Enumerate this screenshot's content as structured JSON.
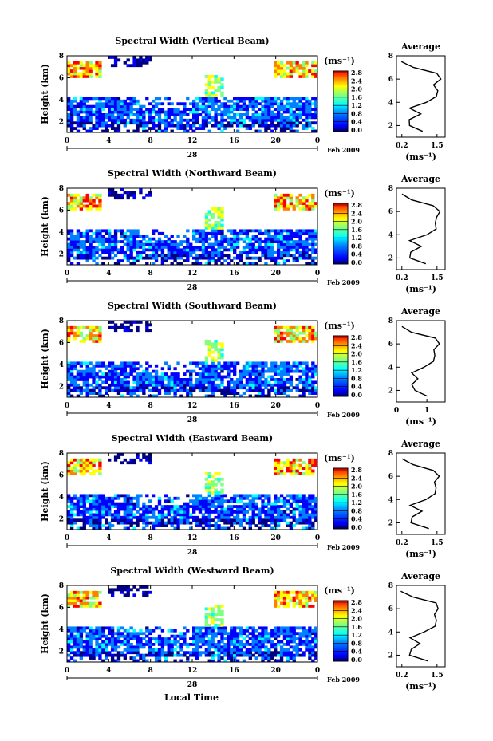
{
  "page": {
    "x_axis_label": "Local Time",
    "date_label": "Feb 2009",
    "day_label": "28",
    "ylabel": "Height (km)",
    "cb_unit": "(ms⁻¹)",
    "avg_title": "Average",
    "avg_xlabel": "(ms⁻¹)"
  },
  "chart_data": [
    {
      "type": "heatmap",
      "title": "Spectral Width (Vertical Beam)",
      "xlabel": "",
      "ylabel": "Height (km)",
      "x_ticks": [
        "0",
        "4",
        "8",
        "12",
        "16",
        "20",
        "0"
      ],
      "y_ticks": [
        "2",
        "4",
        "6",
        "8"
      ],
      "colorbar_ticks": [
        "0.0",
        "0.4",
        "0.8",
        "1.2",
        "1.6",
        "2.0",
        "2.4",
        "2.8"
      ],
      "colorbar_unit": "(ms⁻¹)",
      "date": "Feb 2009",
      "day": "28",
      "xlim": [
        0,
        24
      ],
      "ylim": [
        1,
        8
      ],
      "colorbar_range": [
        0.0,
        2.8
      ],
      "colors": [
        "#000080",
        "#0000ff",
        "#0080ff",
        "#00ffff",
        "#80ff80",
        "#ffff00",
        "#ff8000",
        "#ff0000"
      ],
      "profile": {
        "title": "Average",
        "xlabel": "(ms⁻¹)",
        "x_ticks": [
          "0.2",
          "1.5"
        ],
        "y_ticks": [
          "2",
          "4",
          "6",
          "8"
        ],
        "xlim": [
          0,
          1.8
        ],
        "ylim": [
          1,
          8
        ],
        "y": [
          1.5,
          2.0,
          2.5,
          3.0,
          3.5,
          4.0,
          4.5,
          5.0,
          5.5,
          6.0,
          6.5,
          7.0,
          7.5
        ],
        "x": [
          1.0,
          0.45,
          0.5,
          0.9,
          0.45,
          1.1,
          1.5,
          1.5,
          1.4,
          1.6,
          1.5,
          0.6,
          0.2
        ]
      }
    },
    {
      "type": "heatmap",
      "title": "Spectral Width (Northward Beam)",
      "xlabel": "",
      "ylabel": "Height (km)",
      "x_ticks": [
        "0",
        "4",
        "8",
        "12",
        "16",
        "20",
        "0"
      ],
      "y_ticks": [
        "2",
        "4",
        "6",
        "8"
      ],
      "colorbar_ticks": [
        "0.0",
        "0.4",
        "0.8",
        "1.2",
        "1.6",
        "2.0",
        "2.4",
        "2.8"
      ],
      "colorbar_unit": "(ms⁻¹)",
      "date": "Feb 2009",
      "day": "28",
      "xlim": [
        0,
        24
      ],
      "ylim": [
        1,
        8
      ],
      "colorbar_range": [
        0.0,
        2.8
      ],
      "colors": [
        "#000080",
        "#0000ff",
        "#0080ff",
        "#00ffff",
        "#80ff80",
        "#ffff00",
        "#ff8000",
        "#ff0000"
      ],
      "profile": {
        "title": "Average",
        "xlabel": "(ms⁻¹)",
        "x_ticks": [
          "0.2",
          "1.5"
        ],
        "y_ticks": [
          "2",
          "4",
          "6",
          "8"
        ],
        "xlim": [
          0,
          1.8
        ],
        "ylim": [
          1,
          8
        ],
        "y": [
          1.5,
          2.0,
          2.5,
          3.0,
          3.5,
          4.0,
          4.5,
          5.0,
          5.5,
          6.0,
          6.5,
          7.0,
          7.5
        ],
        "x": [
          1.1,
          0.5,
          0.55,
          0.9,
          0.5,
          1.1,
          1.5,
          1.4,
          1.5,
          1.6,
          1.4,
          0.6,
          0.2
        ]
      }
    },
    {
      "type": "heatmap",
      "title": "Spectral Width (Southward Beam)",
      "xlabel": "",
      "ylabel": "Height (km)",
      "x_ticks": [
        "0",
        "4",
        "8",
        "12",
        "16",
        "20",
        "0"
      ],
      "y_ticks": [
        "2",
        "4",
        "6",
        "8"
      ],
      "colorbar_ticks": [
        "0.0",
        "0.4",
        "0.8",
        "1.2",
        "1.6",
        "2.0",
        "2.4",
        "2.8"
      ],
      "colorbar_unit": "(ms⁻¹)",
      "date": "Feb 2009",
      "day": "28",
      "xlim": [
        0,
        24
      ],
      "ylim": [
        1,
        8
      ],
      "colorbar_range": [
        0.0,
        2.8
      ],
      "colors": [
        "#000080",
        "#0000ff",
        "#0080ff",
        "#00ffff",
        "#80ff80",
        "#ffff00",
        "#ff8000",
        "#ff0000"
      ],
      "profile": {
        "title": "Average",
        "xlabel": "(ms⁻¹)",
        "x_ticks": [
          "0",
          "1"
        ],
        "y_ticks": [
          "2",
          "4",
          "6",
          "8"
        ],
        "xlim": [
          0,
          1.6
        ],
        "ylim": [
          1,
          8
        ],
        "y": [
          1.5,
          2.0,
          2.5,
          3.0,
          3.5,
          4.0,
          4.5,
          5.0,
          5.5,
          6.0,
          6.5,
          7.0,
          7.5
        ],
        "x": [
          1.0,
          0.6,
          0.5,
          0.7,
          0.5,
          0.9,
          1.2,
          1.3,
          1.2,
          1.4,
          1.3,
          0.5,
          0.2
        ]
      }
    },
    {
      "type": "heatmap",
      "title": "Spectral Width (Eastward Beam)",
      "xlabel": "",
      "ylabel": "Height (km)",
      "x_ticks": [
        "0",
        "4",
        "8",
        "12",
        "16",
        "20",
        "0"
      ],
      "y_ticks": [
        "2",
        "4",
        "6",
        "8"
      ],
      "colorbar_ticks": [
        "0.0",
        "0.4",
        "0.8",
        "1.2",
        "1.6",
        "2.0",
        "2.4",
        "2.8"
      ],
      "colorbar_unit": "(ms⁻¹)",
      "date": "Feb 2009",
      "day": "28",
      "xlim": [
        0,
        24
      ],
      "ylim": [
        1,
        8
      ],
      "colorbar_range": [
        0.0,
        2.8
      ],
      "colors": [
        "#000080",
        "#0000ff",
        "#0080ff",
        "#00ffff",
        "#80ff80",
        "#ffff00",
        "#ff8000",
        "#ff0000"
      ],
      "profile": {
        "title": "Average",
        "xlabel": "(ms⁻¹)",
        "x_ticks": [
          "0.2",
          "1.5"
        ],
        "y_ticks": [
          "2",
          "4",
          "6",
          "8"
        ],
        "xlim": [
          0,
          1.8
        ],
        "ylim": [
          1,
          8
        ],
        "y": [
          1.5,
          2.0,
          2.5,
          3.0,
          3.5,
          4.0,
          4.5,
          5.0,
          5.5,
          6.0,
          6.5,
          7.0,
          7.5
        ],
        "x": [
          1.2,
          0.55,
          0.55,
          0.9,
          0.5,
          1.1,
          1.45,
          1.5,
          1.4,
          1.55,
          1.4,
          0.6,
          0.2
        ]
      }
    },
    {
      "type": "heatmap",
      "title": "Spectral Width (Westward Beam)",
      "xlabel": "Local Time",
      "ylabel": "Height (km)",
      "x_ticks": [
        "0",
        "4",
        "8",
        "12",
        "16",
        "20",
        "0"
      ],
      "y_ticks": [
        "2",
        "4",
        "6",
        "8"
      ],
      "colorbar_ticks": [
        "0.0",
        "0.4",
        "0.8",
        "1.2",
        "1.6",
        "2.0",
        "2.4",
        "2.8"
      ],
      "colorbar_unit": "(ms⁻¹)",
      "date": "Feb 2009",
      "day": "28",
      "xlim": [
        0,
        24
      ],
      "ylim": [
        1,
        8
      ],
      "colorbar_range": [
        0.0,
        2.8
      ],
      "colors": [
        "#000080",
        "#0000ff",
        "#0080ff",
        "#00ffff",
        "#80ff80",
        "#ffff00",
        "#ff8000",
        "#ff0000"
      ],
      "profile": {
        "title": "Average",
        "xlabel": "(ms⁻¹)",
        "x_ticks": [
          "0.2",
          "1.5"
        ],
        "y_ticks": [
          "2",
          "4",
          "6",
          "8"
        ],
        "xlim": [
          0,
          1.8
        ],
        "ylim": [
          1,
          8
        ],
        "y": [
          1.5,
          2.0,
          2.5,
          3.0,
          3.5,
          4.0,
          4.5,
          5.0,
          5.5,
          6.0,
          6.5,
          7.0,
          7.5
        ],
        "x": [
          1.15,
          0.5,
          0.55,
          0.85,
          0.5,
          1.05,
          1.45,
          1.5,
          1.4,
          1.55,
          1.45,
          0.6,
          0.2
        ]
      }
    }
  ]
}
